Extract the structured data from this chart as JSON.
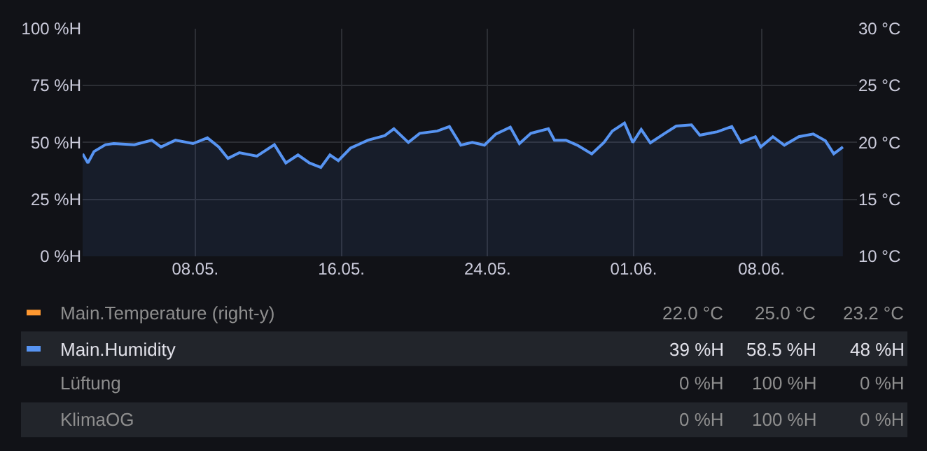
{
  "chart_data": {
    "type": "area",
    "x": [
      "--05-01T20:00",
      "--05-02T03:00",
      "--05-02T11:00",
      "--05-03T02:00",
      "--05-03T13:00",
      "--05-04T16:00",
      "--05-05T15:00",
      "--05-06T03:00",
      "--05-06T22:00",
      "--05-07T21:00",
      "--05-08T16:00",
      "--05-09T07:00",
      "--05-09T19:00",
      "--05-10T10:00",
      "--05-11T09:00",
      "--05-12T08:00",
      "--05-12T23:00",
      "--05-13T15:00",
      "--05-14T06:00",
      "--05-14T21:00",
      "--05-15T09:00",
      "--05-15T20:00",
      "--05-16T12:00",
      "--05-17T11:00",
      "--05-18T09:00",
      "--05-18T21:00",
      "--05-19T16:00",
      "--05-20T07:00",
      "--05-21T06:00",
      "--05-21T22:00",
      "--05-22T13:00",
      "--05-23T04:00",
      "--05-23T20:00",
      "--05-24T11:00",
      "--05-25T06:00",
      "--05-25T18:00",
      "--05-26T09:00",
      "--05-27T08:00",
      "--05-27T16:00",
      "--05-28T07:00",
      "--05-28T22:00",
      "--05-29T17:00",
      "--05-30T09:00",
      "--05-30T20:00",
      "--05-31T12:00",
      "--05-31T23:00",
      "--06-01T10:00",
      "--06-01T22:00",
      "--06-02T17:00",
      "--06-03T08:00",
      "--06-04T04:00",
      "--06-04T15:00",
      "--06-05T14:00",
      "--06-06T09:00",
      "--06-06T21:00",
      "--06-07T16:00",
      "--06-07T23:00",
      "--06-08T15:00",
      "--06-09T06:00",
      "--06-10T01:00",
      "--06-10T20:00",
      "--06-11T12:00",
      "--06-11T23:00",
      "--06-12T11:00"
    ],
    "series": [
      {
        "name": "Main.Temperature (right-y)",
        "color": "#ff9830",
        "axis": "y2",
        "values": [
          null,
          null,
          null,
          null,
          null,
          null,
          null,
          null,
          null,
          null,
          null,
          null,
          null,
          null,
          null,
          null,
          null,
          null,
          null,
          null,
          null,
          null,
          null,
          null,
          null,
          null,
          null,
          null,
          null,
          null,
          null,
          null,
          null,
          null,
          null,
          null,
          null,
          null,
          null,
          null,
          null,
          null,
          null,
          null,
          null,
          null,
          null,
          null,
          null,
          null,
          null,
          null,
          null,
          null,
          null,
          null,
          null,
          null,
          null,
          null,
          null,
          null,
          null,
          null
        ]
      },
      {
        "name": "Main.Humidity",
        "color": "#5794f2",
        "values": [
          45,
          41,
          46,
          49,
          49.5,
          49,
          51,
          48,
          51,
          49.5,
          52,
          48,
          43,
          45.5,
          44,
          49,
          41,
          44.5,
          41,
          39,
          44.5,
          42,
          47.5,
          51,
          53,
          56,
          50,
          54,
          55,
          57,
          48.8,
          50,
          48.8,
          53.7,
          56.7,
          49.5,
          54,
          56,
          51,
          51,
          48.8,
          45,
          50,
          55,
          58.5,
          50,
          55.7,
          49.8,
          54,
          57.2,
          57.7,
          53.2,
          54.7,
          57,
          50,
          52.5,
          48,
          52.5,
          48.8,
          52.5,
          53.7,
          50.7,
          45,
          48
        ]
      },
      {
        "name": "Lüftung",
        "values": [
          null,
          null,
          null,
          null,
          null,
          null,
          null,
          null,
          null,
          null,
          null,
          null,
          null,
          null,
          null,
          null,
          null,
          null,
          null,
          null,
          null,
          null,
          null,
          null,
          null,
          null,
          null,
          null,
          null,
          null,
          null,
          null,
          null,
          null,
          null,
          null,
          null,
          null,
          null,
          null,
          null,
          null,
          null,
          null,
          null,
          null,
          null,
          null,
          null,
          null,
          null,
          null,
          null,
          null,
          null,
          null,
          null,
          null,
          null,
          null,
          null,
          null,
          null,
          null
        ]
      },
      {
        "name": "KlimaOG",
        "values": [
          null,
          null,
          null,
          null,
          null,
          null,
          null,
          null,
          null,
          null,
          null,
          null,
          null,
          null,
          null,
          null,
          null,
          null,
          null,
          null,
          null,
          null,
          null,
          null,
          null,
          null,
          null,
          null,
          null,
          null,
          null,
          null,
          null,
          null,
          null,
          null,
          null,
          null,
          null,
          null,
          null,
          null,
          null,
          null,
          null,
          null,
          null,
          null,
          null,
          null,
          null,
          null,
          null,
          null,
          null,
          null,
          null,
          null,
          null,
          null,
          null,
          null,
          null,
          null
        ]
      }
    ],
    "xlim": [
      "--05-01T20:00",
      "--06-13T05:30"
    ],
    "xticks": [
      {
        "value": "--05-08",
        "label": "08.05."
      },
      {
        "value": "--05-16",
        "label": "16.05."
      },
      {
        "value": "--05-24",
        "label": "24.05."
      },
      {
        "value": "--06-01",
        "label": "01.06."
      },
      {
        "value": "--06-08",
        "label": "08.06."
      }
    ],
    "ylim": [
      0,
      100
    ],
    "yticks": [
      {
        "value": 0,
        "label": "0 %H"
      },
      {
        "value": 25,
        "label": "25 %H"
      },
      {
        "value": 50,
        "label": "50 %H"
      },
      {
        "value": 75,
        "label": "75 %H"
      },
      {
        "value": 100,
        "label": "100 %H"
      }
    ],
    "y2lim": [
      10,
      30
    ],
    "y2ticks": [
      {
        "value": 10,
        "label": "10 °C"
      },
      {
        "value": 15,
        "label": "15 °C"
      },
      {
        "value": 20,
        "label": "20 °C"
      },
      {
        "value": 25,
        "label": "25 °C"
      },
      {
        "value": 30,
        "label": "30 °C"
      }
    ],
    "annotations": [
      "22.0 °C",
      "25.0 °C",
      "23.2 °C",
      "39 %H",
      "58.5 %H",
      "48 %H",
      "0 %H",
      "100 %H",
      "0 %H",
      "0 %H",
      "100 %H",
      "0 %H"
    ],
    "grid": true,
    "legend": "bottom",
    "marker": "none",
    "line_style": "solid"
  }
}
